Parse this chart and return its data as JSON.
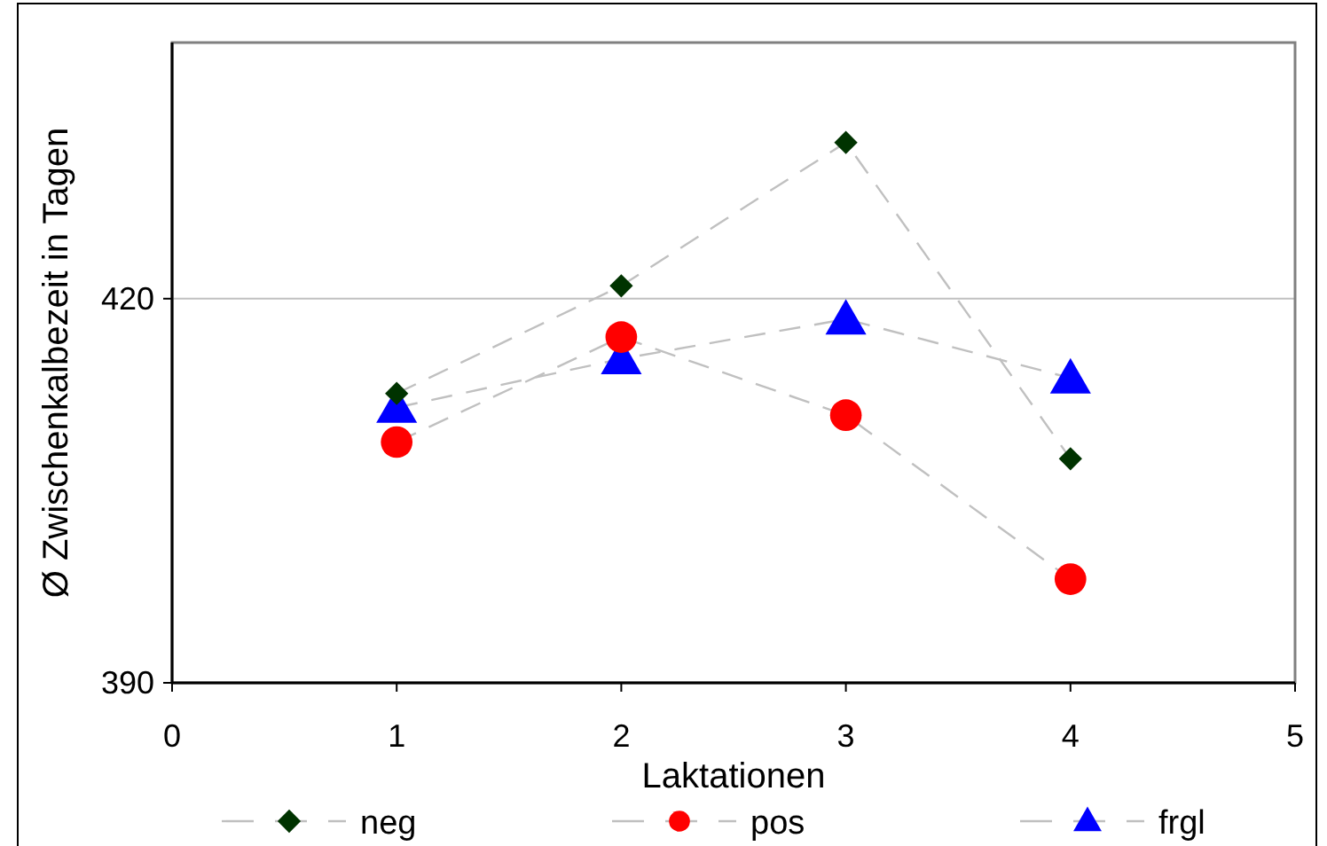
{
  "chart_data": {
    "type": "line",
    "xlabel": "Laktationen",
    "ylabel": "Ø Zwischenkalbezeit in Tagen",
    "x": [
      1,
      2,
      3,
      4
    ],
    "xlim": [
      0,
      5
    ],
    "xticks": [
      0,
      1,
      2,
      3,
      4,
      5
    ],
    "ylim": [
      390,
      440
    ],
    "yticks": [
      390,
      420
    ],
    "grid": "y",
    "legend": "bottom",
    "line_style": "dashed",
    "series": [
      {
        "name": "neg",
        "color": "#003300",
        "marker": "diamond",
        "values": [
          412.6,
          421.0,
          432.2,
          407.5
        ]
      },
      {
        "name": "pos",
        "color": "#ff0000",
        "marker": "circle",
        "values": [
          408.8,
          417.0,
          410.9,
          398.1
        ]
      },
      {
        "name": "frgl",
        "color": "#0000ff",
        "marker": "triangle",
        "values": [
          411.5,
          415.3,
          418.4,
          413.8
        ]
      }
    ]
  }
}
